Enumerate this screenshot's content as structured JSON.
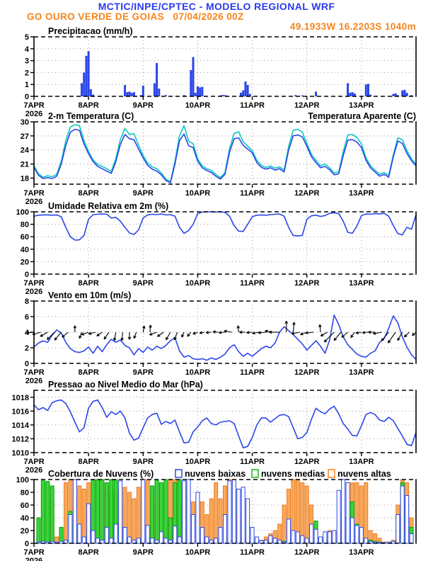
{
  "header": {
    "title": "MCTIC/INPE/CPTEC - MODELO REGIONAL WRF",
    "subtitle": "GO OURO VERDE DE GOIAS   07/04/2026 00Z",
    "location": "49.1933W 16.2203S 1040m",
    "title_color": "#2b3bee",
    "accent_color": "#f5841e"
  },
  "x_axis": {
    "day_labels": [
      "7APR",
      "8APR",
      "9APR",
      "10APR",
      "11APR",
      "12APR",
      "13APR"
    ],
    "year_label": "2026",
    "hours_total": 168,
    "tick_step_hours": 24
  },
  "chart_data": [
    {
      "id": "precip",
      "type": "bar",
      "title": "Precipitacao (mm/h)",
      "ylim": [
        0,
        5
      ],
      "yticks": [
        0,
        1,
        2,
        3,
        4,
        5
      ],
      "bar_color": "#2b46e8",
      "bars": [
        [
          14,
          0.05
        ],
        [
          21,
          1.1
        ],
        [
          22,
          2.0
        ],
        [
          23,
          3.4
        ],
        [
          24,
          3.8
        ],
        [
          25,
          0.6
        ],
        [
          26,
          0.15
        ],
        [
          40,
          0.95
        ],
        [
          41,
          0.35
        ],
        [
          42,
          0.4
        ],
        [
          43,
          0.3
        ],
        [
          44,
          0.35
        ],
        [
          47,
          0.1
        ],
        [
          48,
          0.9
        ],
        [
          53,
          1.1
        ],
        [
          54,
          2.8
        ],
        [
          55,
          0.65
        ],
        [
          58,
          0.1
        ],
        [
          66,
          0.1
        ],
        [
          69,
          2.2
        ],
        [
          70,
          3.3
        ],
        [
          71,
          0.3
        ],
        [
          72,
          0.85
        ],
        [
          73,
          0.75
        ],
        [
          74,
          0.8
        ],
        [
          82,
          0.08
        ],
        [
          83,
          0.12
        ],
        [
          84,
          0.1
        ],
        [
          85,
          0.06
        ],
        [
          91,
          0.3
        ],
        [
          92,
          0.5
        ],
        [
          93,
          1.25
        ],
        [
          94,
          0.95
        ],
        [
          95,
          0.2
        ],
        [
          115,
          0.1
        ],
        [
          118,
          0.08
        ],
        [
          124,
          0.4
        ],
        [
          138,
          1.1
        ],
        [
          139,
          0.3
        ],
        [
          140,
          0.35
        ],
        [
          141,
          0.25
        ],
        [
          146,
          1.0
        ],
        [
          147,
          1.05
        ],
        [
          148,
          0.15
        ],
        [
          158,
          0.2
        ],
        [
          159,
          0.25
        ],
        [
          160,
          0.1
        ],
        [
          162,
          0.5
        ],
        [
          163,
          0.55
        ],
        [
          164,
          0.3
        ],
        [
          166,
          0.1
        ]
      ]
    },
    {
      "id": "temp",
      "type": "line",
      "title": "2-m Temperatura (C)",
      "title_right": "Temperatura Aparente (C)",
      "title_right_color": "#0cc8c0",
      "ylim": [
        16.7,
        30
      ],
      "yticks": [
        18,
        21,
        24,
        27,
        30
      ],
      "step_h": 2,
      "series": [
        {
          "name": "Temperatura Aparente (C)",
          "color": "#0cc8c0",
          "values": [
            20.6,
            18.9,
            18.2,
            18.5,
            18.3,
            18.8,
            21.6,
            26.0,
            28.9,
            29.4,
            29.2,
            26.0,
            23.7,
            21.9,
            20.9,
            20.5,
            20.0,
            19.4,
            22.2,
            26.2,
            28.6,
            27.3,
            27.5,
            25.0,
            22.8,
            21.2,
            20.4,
            20.0,
            19.1,
            17.8,
            17.2,
            21.6,
            27.0,
            29.2,
            25.9,
            25.3,
            22.1,
            20.6,
            20.0,
            19.6,
            18.8,
            18.1,
            19.2,
            24.3,
            27.5,
            27.9,
            25.8,
            24.8,
            23.9,
            21.8,
            20.7,
            20.3,
            20.6,
            20.1,
            20.4,
            19.7,
            24.8,
            28.2,
            28.4,
            27.8,
            25.4,
            23.1,
            21.8,
            20.6,
            21.0,
            20.2,
            19.1,
            19.3,
            23.6,
            27.2,
            27.3,
            26.7,
            25.3,
            22.3,
            20.6,
            19.7,
            18.8,
            19.2,
            18.6,
            23.0,
            26.6,
            26.2,
            23.9,
            22.1,
            21.0
          ]
        },
        {
          "name": "2-m Temperatura (C)",
          "color": "#2b46e8",
          "values": [
            20.3,
            18.6,
            17.9,
            18.1,
            17.9,
            18.4,
            21.0,
            25.0,
            27.8,
            28.4,
            28.2,
            25.3,
            23.2,
            21.5,
            20.5,
            20.0,
            19.5,
            19.0,
            21.5,
            25.2,
            27.3,
            26.4,
            26.2,
            24.2,
            22.3,
            20.7,
            19.9,
            19.5,
            18.7,
            17.5,
            17.0,
            21.0,
            26.0,
            27.4,
            24.9,
            24.5,
            21.6,
            20.2,
            19.6,
            19.2,
            18.4,
            17.8,
            18.8,
            23.5,
            26.4,
            26.6,
            25.0,
            24.2,
            23.4,
            21.3,
            20.3,
            19.9,
            20.2,
            19.7,
            20.0,
            19.3,
            24.0,
            27.0,
            27.2,
            26.8,
            24.8,
            22.6,
            21.3,
            20.2,
            20.5,
            19.8,
            18.7,
            18.9,
            22.8,
            26.1,
            26.2,
            25.7,
            24.5,
            21.8,
            20.2,
            19.3,
            18.4,
            18.8,
            18.2,
            22.5,
            25.9,
            25.4,
            23.3,
            21.7,
            20.6
          ]
        }
      ]
    },
    {
      "id": "rh",
      "type": "line",
      "title": "Umidade Relativa em 2m (%)",
      "ylim": [
        0,
        100
      ],
      "yticks": [
        0,
        20,
        40,
        60,
        80,
        100
      ],
      "step_h": 2,
      "series": [
        {
          "name": "Umidade Relativa em 2m (%)",
          "color": "#2b46e8",
          "values": [
            93,
            94.5,
            95,
            95,
            94.5,
            95,
            92,
            75,
            60,
            54.5,
            55,
            62,
            88,
            95.5,
            96,
            96.5,
            96,
            90,
            91,
            85,
            75,
            66,
            63.5,
            71,
            90,
            95,
            96,
            95.5,
            96.5,
            95,
            95.5,
            93,
            75,
            65.5,
            70,
            80,
            97,
            99.5,
            100,
            100,
            99.5,
            100,
            99,
            93,
            78,
            69,
            68.5,
            80,
            92,
            94.5,
            95,
            94.5,
            95.5,
            96,
            96.5,
            93,
            75,
            62,
            61.5,
            62,
            88,
            93.5,
            94.5,
            92.5,
            94,
            97.5,
            98.5,
            97,
            85,
            67,
            65.5,
            77,
            94,
            96.5,
            96,
            97,
            96.5,
            97.5,
            93,
            78,
            65,
            63,
            75,
            72,
            95
          ]
        }
      ]
    },
    {
      "id": "wind",
      "type": "line",
      "title": "Vento em 10m (m/s)",
      "ylim": [
        0,
        8
      ],
      "yticks": [
        0,
        2,
        4,
        6,
        8
      ],
      "step_h": 2,
      "series": [
        {
          "name": "Vento em 10m (m/s)",
          "color": "#2b46e8",
          "values": [
            2.1,
            2.6,
            2.9,
            2.7,
            3.6,
            4.3,
            3.9,
            2.7,
            1.9,
            1.5,
            1.4,
            1.6,
            2.1,
            1.3,
            2.2,
            1.5,
            2.4,
            3.1,
            2.7,
            3.0,
            2.3,
            2.0,
            1.1,
            1.9,
            1.4,
            2.1,
            1.7,
            2.2,
            1.9,
            2.3,
            2.9,
            3.3,
            1.6,
            0.8,
            1.0,
            0.6,
            0.5,
            0.6,
            0.4,
            0.7,
            0.5,
            0.8,
            1.2,
            2.0,
            2.4,
            1.5,
            0.9,
            1.3,
            0.9,
            1.4,
            1.9,
            2.2,
            2.0,
            2.6,
            4.0,
            4.7,
            4.2,
            3.7,
            3.1,
            2.5,
            1.7,
            2.3,
            2.9,
            2.2,
            1.3,
            3.0,
            6.2,
            5.0,
            3.4,
            2.4,
            1.8,
            1.2,
            0.9,
            0.8,
            1.3,
            1.6,
            2.7,
            3.2,
            4.5,
            6.1,
            5.2,
            3.4,
            2.1,
            1.1,
            0.5
          ]
        }
      ],
      "barbs": {
        "axis_value": 4,
        "step_h": 3,
        "color": "#000000",
        "dir_deg": [
          185,
          195,
          210,
          225,
          230,
          220,
          90,
          250,
          200,
          195,
          215,
          235,
          260,
          265,
          270,
          250,
          80,
          85,
          200,
          215,
          240,
          250,
          245,
          230,
          200,
          190,
          185,
          175,
          185,
          170,
          95,
          180,
          185,
          190,
          185,
          170,
          180,
          90,
          85,
          190,
          200,
          185,
          95,
          210,
          225,
          230,
          220,
          235,
          190,
          185,
          180,
          190,
          230,
          235,
          240,
          225,
          220
        ]
      }
    },
    {
      "id": "pres",
      "type": "line",
      "title": "Pressao ao Nivel Medio do Mar (hPa)",
      "ylim": [
        1010,
        1019
      ],
      "yticks": [
        1010,
        1012,
        1014,
        1016,
        1018
      ],
      "step_h": 2,
      "series": [
        {
          "name": "Pressao ao Nivel Medio do Mar (hPa)",
          "color": "#2b46e8",
          "values": [
            1016.9,
            1016.2,
            1016.5,
            1016.1,
            1017.2,
            1017.5,
            1017.6,
            1017.1,
            1015.9,
            1014.4,
            1013.0,
            1013.6,
            1016.4,
            1017.4,
            1017.6,
            1016.5,
            1015.1,
            1015.9,
            1015.5,
            1016.0,
            1015.0,
            1012.8,
            1011.8,
            1012.1,
            1013.6,
            1015.0,
            1015.5,
            1015.7,
            1014.1,
            1014.5,
            1014.2,
            1014.7,
            1013.0,
            1011.4,
            1011.5,
            1013.0,
            1013.7,
            1014.6,
            1015.0,
            1014.2,
            1014.0,
            1014.4,
            1014.5,
            1014.6,
            1014.2,
            1012.4,
            1010.7,
            1010.9,
            1012.2,
            1014.0,
            1015.0,
            1015.0,
            1014.4,
            1014.9,
            1015.4,
            1015.5,
            1015.2,
            1013.6,
            1012.0,
            1012.2,
            1012.9,
            1014.8,
            1016.4,
            1015.9,
            1015.6,
            1016.3,
            1016.7,
            1015.6,
            1014.2,
            1013.4,
            1012.5,
            1012.4,
            1013.9,
            1015.5,
            1015.8,
            1015.5,
            1014.7,
            1014.5,
            1015.1,
            1014.6,
            1013.5,
            1012.4,
            1011.2,
            1011.0,
            1012.9
          ]
        }
      ]
    },
    {
      "id": "clouds",
      "type": "bar",
      "title": "Cobertura de Nuvens (%)",
      "ylim": [
        0,
        100
      ],
      "yticks": [
        0,
        20,
        40,
        60,
        80,
        100
      ],
      "step_h": 2,
      "legend": [
        {
          "label": "nuvens baixas",
          "color": "#2b46e8"
        },
        {
          "label": "nuvens medias",
          "color": "#14b814"
        },
        {
          "label": "nuvens altas",
          "color": "#f5841e"
        }
      ],
      "series": [
        {
          "name": "nuvens altas",
          "stroke": "#ee7d1f",
          "fill": "#f8a95e",
          "values": [
            0,
            5,
            0,
            0,
            65,
            10,
            20,
            95,
            100,
            70,
            90,
            85,
            95,
            100,
            85,
            80,
            90,
            80,
            85,
            80,
            88,
            80,
            70,
            88,
            95,
            100,
            75,
            65,
            95,
            90,
            100,
            100,
            60,
            85,
            88,
            65,
            80,
            65,
            45,
            70,
            95,
            70,
            90,
            100,
            95,
            45,
            10,
            5,
            5,
            8,
            5,
            10,
            15,
            20,
            30,
            60,
            85,
            100,
            100,
            95,
            90,
            60,
            30,
            6,
            6,
            20,
            6,
            25,
            25,
            6,
            95,
            95,
            90,
            95,
            20,
            15,
            8,
            2,
            0,
            5,
            60,
            100,
            95,
            40
          ]
        },
        {
          "name": "nuvens medias",
          "stroke": "#00a000",
          "fill": "#3ed43e",
          "values": [
            0,
            40,
            100,
            97,
            90,
            0,
            25,
            0,
            50,
            30,
            0,
            0,
            20,
            100,
            100,
            100,
            95,
            100,
            100,
            30,
            5,
            0,
            0,
            5,
            3,
            5,
            90,
            100,
            95,
            100,
            40,
            95,
            100,
            95,
            20,
            0,
            5,
            3,
            2,
            5,
            3,
            2,
            3,
            2,
            5,
            3,
            2,
            3,
            2,
            5,
            2,
            3,
            2,
            3,
            5,
            3,
            5,
            3,
            2,
            3,
            2,
            3,
            35,
            5,
            3,
            5,
            3,
            3,
            40,
            42,
            65,
            30,
            5,
            3,
            5,
            3,
            2,
            0,
            0,
            2,
            20,
            95,
            65,
            25
          ]
        },
        {
          "name": "nuvens baixas",
          "stroke": "#2b46e8",
          "fill": "#ffffff",
          "values": [
            0,
            2,
            3,
            2,
            3,
            2,
            3,
            5,
            45,
            100,
            30,
            10,
            62,
            20,
            8,
            5,
            25,
            8,
            30,
            98,
            25,
            10,
            5,
            8,
            100,
            28,
            8,
            5,
            18,
            8,
            5,
            27,
            10,
            98,
            100,
            45,
            80,
            25,
            10,
            5,
            8,
            25,
            45,
            98,
            100,
            85,
            88,
            70,
            25,
            10,
            4,
            5,
            12,
            8,
            5,
            2,
            38,
            20,
            18,
            12,
            8,
            30,
            22,
            10,
            18,
            18,
            20,
            83,
            100,
            95,
            40,
            28,
            25,
            8,
            3,
            2,
            1,
            1,
            2,
            3,
            45,
            90,
            75,
            15
          ]
        }
      ]
    }
  ]
}
